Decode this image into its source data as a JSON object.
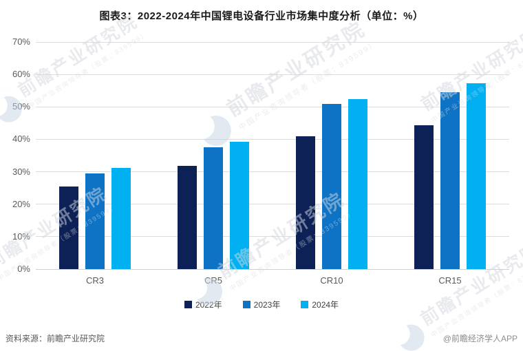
{
  "page": {
    "footer": {
      "source": "资料来源：前瞻产业研究院",
      "credit": "@前瞻经济学人APP"
    }
  },
  "chart_data": {
    "type": "bar",
    "title": "图表3：2022-2024年中国锂电设备行业市场集中度分析（单位：%）",
    "categories": [
      "CR3",
      "CR5",
      "CR10",
      "CR15"
    ],
    "series": [
      {
        "name": "2022年",
        "color": "#0e2157",
        "values": [
          25.5,
          31.9,
          41.0,
          44.4
        ]
      },
      {
        "name": "2023年",
        "color": "#0f73c5",
        "values": [
          29.4,
          37.5,
          50.9,
          54.6
        ]
      },
      {
        "name": "2024年",
        "color": "#00b0f0",
        "values": [
          31.1,
          39.3,
          52.4,
          57.2
        ]
      }
    ],
    "ylim": [
      0,
      70
    ],
    "ytick_labels": [
      "0%",
      "10%",
      "20%",
      "30%",
      "40%",
      "50%",
      "60%",
      "70%"
    ],
    "unit": "%",
    "grid": true,
    "legend_position": "bottom"
  },
  "watermark": {
    "big": "前瞻产业研究院",
    "small": "中国产业咨询领导者（股票：839599）"
  }
}
